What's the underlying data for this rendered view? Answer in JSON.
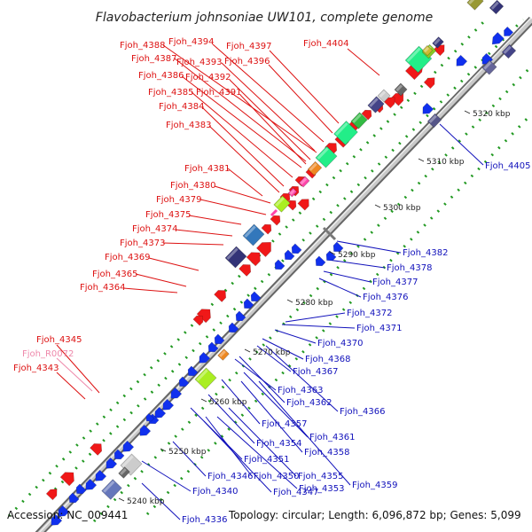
{
  "title": "Flavobacterium johnsoniae UW101, complete genome",
  "footer": {
    "accession": "Accession: NC_009441",
    "summary": "Topology: circular; Length: 6,096,872 bp; Genes: 5,099"
  },
  "colors": {
    "red_labels": "#dd1111",
    "blue_labels": "#1111bb",
    "pink_label": "#ee88aa",
    "backbone": "#888888",
    "dotted_track": "#229922"
  },
  "ticks": [
    "5240 kbp",
    "5250 kbp",
    "5260 kbp",
    "5270 kbp",
    "5280 kbp",
    "5290 kbp",
    "5300 kbp",
    "5310 kbp",
    "5320 kbp"
  ],
  "left_labels": [
    {
      "text": "Fjoh_4388",
      "kind": "red"
    },
    {
      "text": "Fjoh_4394",
      "kind": "red"
    },
    {
      "text": "Fjoh_4397",
      "kind": "red"
    },
    {
      "text": "Fjoh_4404",
      "kind": "red"
    },
    {
      "text": "Fjoh_4387",
      "kind": "red"
    },
    {
      "text": "Fjoh_4393",
      "kind": "red"
    },
    {
      "text": "Fjoh_4396",
      "kind": "red"
    },
    {
      "text": "Fjoh_4386",
      "kind": "red"
    },
    {
      "text": "Fjoh_4392",
      "kind": "red"
    },
    {
      "text": "Fjoh_4385",
      "kind": "red"
    },
    {
      "text": "Fjoh_4391",
      "kind": "red"
    },
    {
      "text": "Fjoh_4384",
      "kind": "red"
    },
    {
      "text": "Fjoh_4383",
      "kind": "red"
    },
    {
      "text": "Fjoh_4381",
      "kind": "red"
    },
    {
      "text": "Fjoh_4380",
      "kind": "red"
    },
    {
      "text": "Fjoh_4379",
      "kind": "red"
    },
    {
      "text": "Fjoh_4375",
      "kind": "red"
    },
    {
      "text": "Fjoh_4374",
      "kind": "red"
    },
    {
      "text": "Fjoh_4373",
      "kind": "red"
    },
    {
      "text": "Fjoh_4369",
      "kind": "red"
    },
    {
      "text": "Fjoh_4365",
      "kind": "red"
    },
    {
      "text": "Fjoh_4364",
      "kind": "red"
    },
    {
      "text": "Fjoh_4345",
      "kind": "red"
    },
    {
      "text": "Fjoh_R0072",
      "kind": "pink"
    },
    {
      "text": "Fjoh_4343",
      "kind": "red"
    }
  ],
  "right_labels": [
    {
      "text": "Fjoh_4405",
      "kind": "blue"
    },
    {
      "text": "Fjoh_4382",
      "kind": "blue"
    },
    {
      "text": "Fjoh_4378",
      "kind": "blue"
    },
    {
      "text": "Fjoh_4377",
      "kind": "blue"
    },
    {
      "text": "Fjoh_4376",
      "kind": "blue"
    },
    {
      "text": "Fjoh_4372",
      "kind": "blue"
    },
    {
      "text": "Fjoh_4371",
      "kind": "blue"
    },
    {
      "text": "Fjoh_4370",
      "kind": "blue"
    },
    {
      "text": "Fjoh_4368",
      "kind": "blue"
    },
    {
      "text": "Fjoh_4367",
      "kind": "blue"
    },
    {
      "text": "Fjoh_4363",
      "kind": "blue"
    },
    {
      "text": "Fjoh_4362",
      "kind": "blue"
    },
    {
      "text": "Fjoh_4366",
      "kind": "blue"
    },
    {
      "text": "Fjoh_4357",
      "kind": "blue"
    },
    {
      "text": "Fjoh_4361",
      "kind": "blue"
    },
    {
      "text": "Fjoh_4354",
      "kind": "blue"
    },
    {
      "text": "Fjoh_4358",
      "kind": "blue"
    },
    {
      "text": "Fjoh_4351",
      "kind": "blue"
    },
    {
      "text": "Fjoh_4355",
      "kind": "blue"
    },
    {
      "text": "Fjoh_4346",
      "kind": "blue"
    },
    {
      "text": "Fjoh_4350",
      "kind": "blue"
    },
    {
      "text": "Fjoh_4359",
      "kind": "blue"
    },
    {
      "text": "Fjoh_4340",
      "kind": "blue"
    },
    {
      "text": "Fjoh_4347",
      "kind": "blue"
    },
    {
      "text": "Fjoh_4353",
      "kind": "blue"
    },
    {
      "text": "Fjoh_4336",
      "kind": "blue"
    }
  ]
}
